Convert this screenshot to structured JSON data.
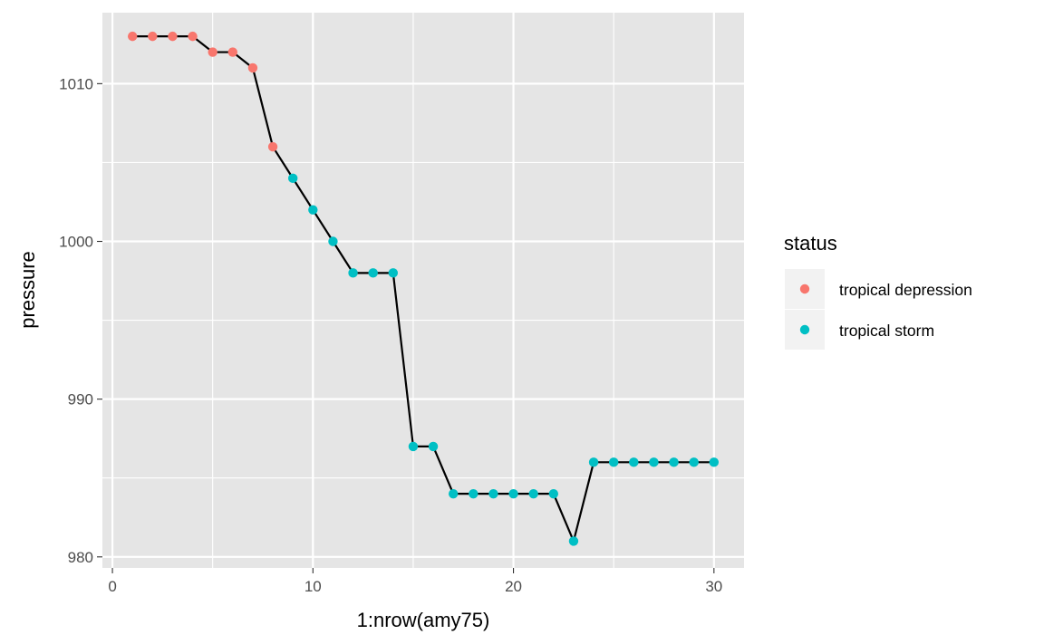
{
  "chart_data": {
    "type": "line",
    "xlabel": "1:nrow(amy75)",
    "ylabel": "pressure",
    "xlim": [
      -0.5,
      31.5
    ],
    "ylim": [
      979.3,
      1014.5
    ],
    "x_ticks": [
      0,
      10,
      20,
      30
    ],
    "x_tick_labels": [
      "0",
      "10",
      "20",
      "30"
    ],
    "x_minor_ticks": [
      5,
      15,
      25
    ],
    "y_ticks": [
      980,
      990,
      1000,
      1010
    ],
    "y_tick_labels": [
      "980",
      "990",
      "1000",
      "1010"
    ],
    "y_minor_ticks": [
      985,
      995,
      1005
    ],
    "grid": true,
    "background_color": "#E5E5E5",
    "grid_color": "#FFFFFF",
    "line_color": "#000000",
    "legend": {
      "title": "status",
      "position": "right",
      "entries": [
        {
          "label": "tropical depression",
          "color": "#F8766D"
        },
        {
          "label": "tropical storm",
          "color": "#00BFC4"
        }
      ]
    },
    "x": [
      1,
      2,
      3,
      4,
      5,
      6,
      7,
      8,
      9,
      10,
      11,
      12,
      13,
      14,
      15,
      16,
      17,
      18,
      19,
      20,
      21,
      22,
      23,
      24,
      25,
      26,
      27,
      28,
      29,
      30
    ],
    "y": [
      1013,
      1013,
      1013,
      1013,
      1012,
      1012,
      1011,
      1006,
      1004,
      1002,
      1000,
      998,
      998,
      998,
      987,
      987,
      984,
      984,
      984,
      984,
      984,
      984,
      981,
      986,
      986,
      986,
      986,
      986,
      986,
      986
    ],
    "status": [
      "tropical depression",
      "tropical depression",
      "tropical depression",
      "tropical depression",
      "tropical depression",
      "tropical depression",
      "tropical depression",
      "tropical depression",
      "tropical storm",
      "tropical storm",
      "tropical storm",
      "tropical storm",
      "tropical storm",
      "tropical storm",
      "tropical storm",
      "tropical storm",
      "tropical storm",
      "tropical storm",
      "tropical storm",
      "tropical storm",
      "tropical storm",
      "tropical storm",
      "tropical storm",
      "tropical storm",
      "tropical storm",
      "tropical storm",
      "tropical storm",
      "tropical storm",
      "tropical storm",
      "tropical storm"
    ]
  }
}
